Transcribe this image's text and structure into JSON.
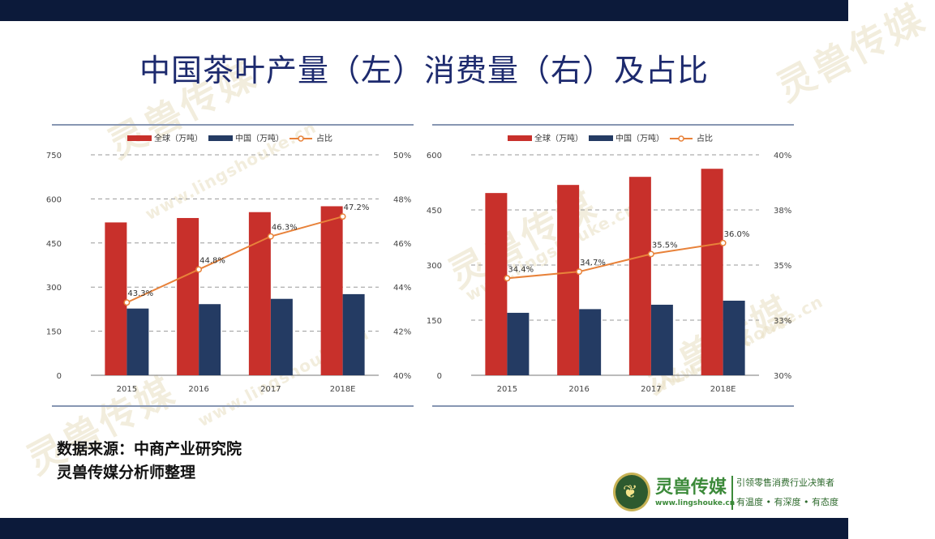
{
  "title": "中国茶叶产量（左）消费量（右）及占比",
  "source": {
    "line1": "数据来源：中商产业研究院",
    "line2": "灵兽传媒分析师整理"
  },
  "watermark": {
    "brand": "灵兽传媒",
    "url": "www.lingshouke.cn"
  },
  "logo": {
    "name": "灵兽传媒",
    "url": "www.lingshouke.cn",
    "slogan": "引领零售消费行业决策者",
    "sub": "有温度 • 有深度 • 有态度"
  },
  "colors": {
    "global": "#c8302b",
    "china": "#243b63",
    "ratio": "#e8823a",
    "grid": "#9a9a9a",
    "frame": "#8796b2",
    "header": "#0c1a3a"
  },
  "chart_data": [
    {
      "type": "bar",
      "title": "中国茶叶产量",
      "legend": [
        "全球（万吨）",
        "中国（万吨）",
        "占比"
      ],
      "categories": [
        "2015",
        "2016",
        "2017",
        "2018E"
      ],
      "series": [
        {
          "name": "全球（万吨）",
          "kind": "bar",
          "values": [
            520,
            535,
            555,
            575
          ]
        },
        {
          "name": "中国（万吨）",
          "kind": "bar",
          "values": [
            227,
            242,
            260,
            276
          ]
        },
        {
          "name": "占比",
          "kind": "line",
          "axis": "right",
          "values": [
            43.3,
            44.8,
            46.3,
            47.2
          ],
          "labels": [
            "43.3%",
            "44.8%",
            "46.3%",
            "47.2%"
          ]
        }
      ],
      "yleft": {
        "min": 0,
        "max": 750,
        "ticks": [
          "0",
          "150",
          "300",
          "450",
          "600",
          "750"
        ]
      },
      "yright": {
        "min": 40,
        "max": 50,
        "ticks": [
          "40%",
          "42%",
          "44%",
          "46%",
          "48%",
          "50%"
        ]
      }
    },
    {
      "type": "bar",
      "title": "中国茶叶消费量",
      "legend": [
        "全球（万吨）",
        "中国（万吨）",
        "占比"
      ],
      "categories": [
        "2015",
        "2016",
        "2017",
        "2018E"
      ],
      "series": [
        {
          "name": "全球（万吨）",
          "kind": "bar",
          "values": [
            496,
            518,
            540,
            562
          ]
        },
        {
          "name": "中国（万吨）",
          "kind": "bar",
          "values": [
            170,
            180,
            192,
            203
          ]
        },
        {
          "name": "占比",
          "kind": "line",
          "axis": "right",
          "values": [
            34.4,
            34.7,
            35.5,
            36.0
          ],
          "labels": [
            "34.4%",
            "34.7%",
            "35.5%",
            "36.0%"
          ]
        }
      ],
      "yleft": {
        "min": 0,
        "max": 600,
        "ticks": [
          "0",
          "150",
          "300",
          "450",
          "600"
        ]
      },
      "yright": {
        "min": 30,
        "max": 40,
        "ticks": [
          "30%",
          "33%",
          "35%",
          "38%",
          "40%"
        ]
      }
    }
  ]
}
